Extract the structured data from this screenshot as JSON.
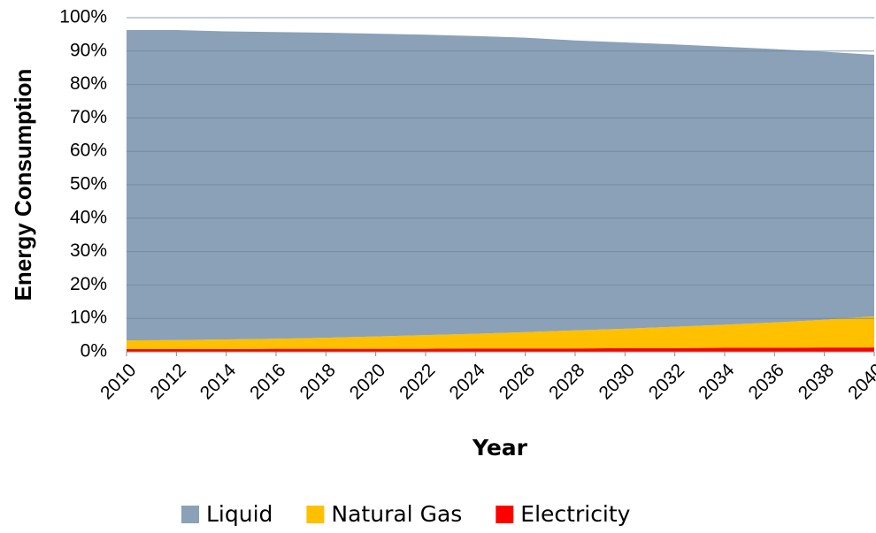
{
  "chart_data": {
    "type": "stacked_area",
    "xlabel": "Year",
    "ylabel": "Energy Consumption",
    "x": [
      2010,
      2012,
      2014,
      2016,
      2018,
      2020,
      2022,
      2024,
      2026,
      2028,
      2030,
      2032,
      2034,
      2036,
      2038,
      2040
    ],
    "xlim": [
      2010,
      2040
    ],
    "xticks": [
      2010,
      2012,
      2014,
      2016,
      2018,
      2020,
      2022,
      2024,
      2026,
      2028,
      2030,
      2032,
      2034,
      2036,
      2038,
      2040
    ],
    "ylim": [
      0,
      100
    ],
    "yticks": [
      {
        "value": 0,
        "label": "0%"
      },
      {
        "value": 10,
        "label": "10%"
      },
      {
        "value": 20,
        "label": "20%"
      },
      {
        "value": 30,
        "label": "30%"
      },
      {
        "value": 40,
        "label": "40%"
      },
      {
        "value": 50,
        "label": "50%"
      },
      {
        "value": 60,
        "label": "60%"
      },
      {
        "value": 70,
        "label": "70%"
      },
      {
        "value": 80,
        "label": "80%"
      },
      {
        "value": 90,
        "label": "90%"
      },
      {
        "value": 100,
        "label": "100%"
      }
    ],
    "grid": true,
    "legend": "bottom",
    "series": [
      {
        "name": "Liquid",
        "color": "#8aa1b8",
        "values": [
          92.9,
          92.8,
          92.2,
          91.8,
          91.3,
          90.6,
          89.9,
          89.1,
          88.1,
          86.8,
          85.7,
          84.5,
          83.2,
          81.8,
          80.2,
          78.3
        ]
      },
      {
        "name": "Natural Gas",
        "color": "#ffc000",
        "values": [
          2.6,
          2.7,
          2.9,
          3.0,
          3.3,
          3.7,
          4.1,
          4.4,
          4.9,
          5.4,
          5.8,
          6.4,
          6.9,
          7.6,
          8.3,
          9.3
        ]
      },
      {
        "name": "Electricity",
        "color": "#ff0000",
        "values": [
          0.8,
          0.8,
          0.8,
          0.9,
          0.9,
          0.9,
          0.9,
          1.0,
          1.0,
          1.0,
          1.1,
          1.1,
          1.2,
          1.2,
          1.3,
          1.3
        ]
      }
    ]
  }
}
